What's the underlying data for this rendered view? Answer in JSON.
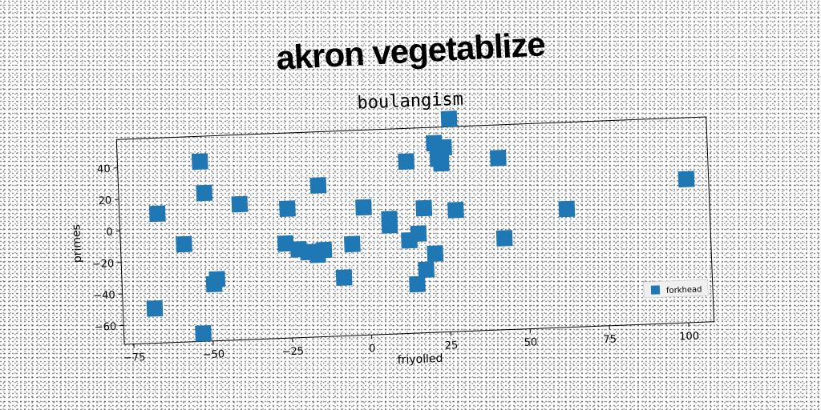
{
  "headline": "akron vegetablize",
  "chart_data": {
    "type": "scatter",
    "title": "boulangism",
    "xlabel": "friyolled",
    "ylabel": "primes",
    "xlim": [
      -78,
      108
    ],
    "ylim": [
      -72,
      58
    ],
    "xticks": [
      -75,
      -50,
      -25,
      0,
      25,
      50,
      75,
      100
    ],
    "yticks": [
      -60,
      -40,
      -20,
      0,
      20,
      40
    ],
    "legend_position": "lower-right",
    "grid": false,
    "series": [
      {
        "name": "forkhead",
        "color": "#1f77b4",
        "marker": "square",
        "points": [
          [
            -68,
            -50
          ],
          [
            -66,
            10
          ],
          [
            -58,
            -10
          ],
          [
            -53,
            -67
          ],
          [
            -52,
            42
          ],
          [
            -51,
            22
          ],
          [
            -49,
            -36
          ],
          [
            -48,
            -33
          ],
          [
            -40,
            14
          ],
          [
            -26,
            -12
          ],
          [
            -25,
            10
          ],
          [
            -22,
            -16
          ],
          [
            -19,
            -18
          ],
          [
            -16,
            -20
          ],
          [
            -15,
            24
          ],
          [
            -14,
            -17
          ],
          [
            -8,
            -35
          ],
          [
            -5,
            -14
          ],
          [
            -1,
            9
          ],
          [
            7,
            -3
          ],
          [
            7,
            1
          ],
          [
            13,
            -13
          ],
          [
            13,
            37
          ],
          [
            15,
            -41
          ],
          [
            16,
            -9
          ],
          [
            18,
            7
          ],
          [
            18,
            -32
          ],
          [
            21,
            -22
          ],
          [
            22,
            48
          ],
          [
            23,
            38
          ],
          [
            24,
            35
          ],
          [
            25,
            45
          ],
          [
            27,
            63
          ],
          [
            28,
            5
          ],
          [
            42,
            37
          ],
          [
            43,
            -14
          ],
          [
            63,
            3
          ],
          [
            101,
            19
          ]
        ]
      }
    ]
  }
}
